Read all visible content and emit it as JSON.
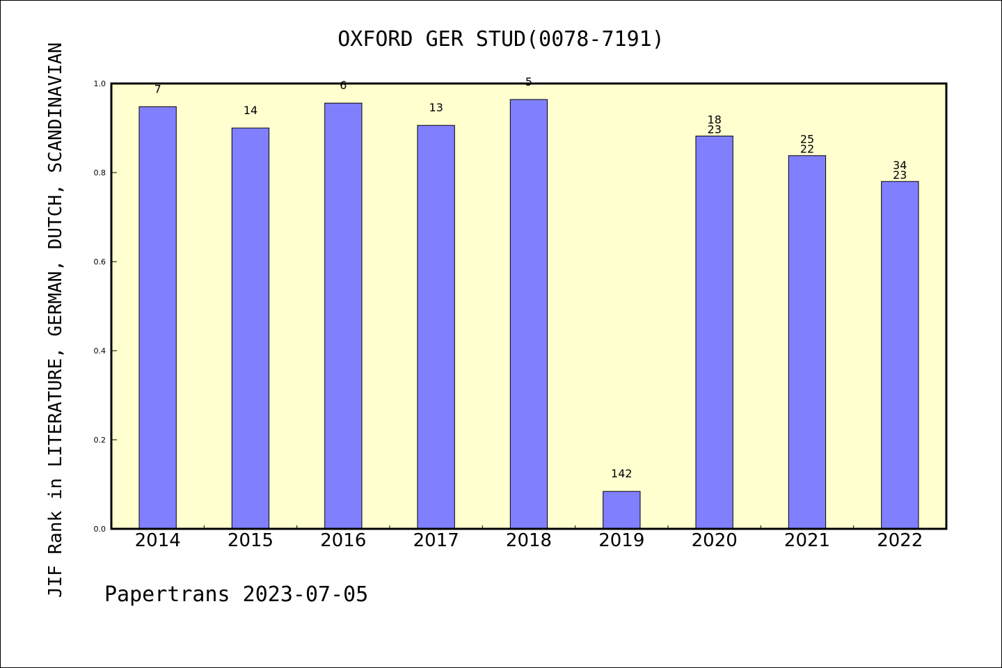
{
  "chart_data": {
    "type": "bar",
    "title": "OXFORD GER STUD(0078-7191)",
    "ylabel": "JIF Rank in LITERATURE, GERMAN, DUTCH, SCANDINAVIAN",
    "xlabel": "",
    "categories": [
      "2014",
      "2015",
      "2016",
      "2017",
      "2018",
      "2019",
      "2020",
      "2021",
      "2022"
    ],
    "values": [
      0.948,
      0.9,
      0.956,
      0.906,
      0.964,
      0.084,
      0.882,
      0.838,
      0.78
    ],
    "labels_top": [
      "7",
      "14",
      "6",
      "13",
      "5",
      "142",
      "18",
      "25",
      "34"
    ],
    "labels_bottom": [
      "",
      "",
      "",
      "",
      "",
      "",
      "23",
      "22",
      "23"
    ],
    "ylim": [
      0,
      1.0
    ],
    "yticks": [
      "0.0",
      "0.2",
      "0.4",
      "0.6",
      "0.8",
      "1.0"
    ],
    "grid": false,
    "bar_color": "#8080ff",
    "plot_background": "#ffffd0"
  },
  "footer": "Papertrans 2023-07-05"
}
